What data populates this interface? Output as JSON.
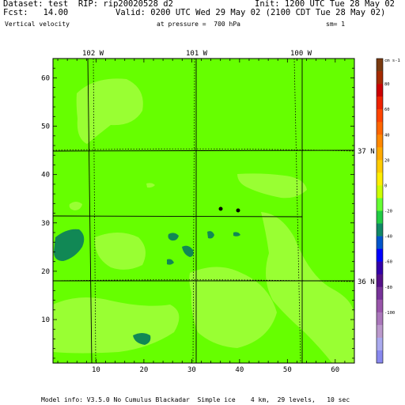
{
  "header": {
    "dataset": "Dataset: test  RIP: rip20020528 d2",
    "init": "Init: 1200 UTC Tue 28 May 02",
    "fcst": "Fcst:   14.00",
    "valid": "Valid: 0200 UTC Wed 29 May 02 (2100 CDT Tue 28 May 02)",
    "field": "Vertical velocity",
    "pressure": "at pressure =  700 hPa",
    "sm": "sm= 1"
  },
  "footer": {
    "model_info": "Model info: V3.5.0 No Cumulus Blackadar  Simple ice    4 km,  29 levels,   10 sec"
  },
  "map": {
    "lon_labels": [
      "102 W",
      "101 W",
      "100 W"
    ],
    "lat_labels": [
      "37 N",
      "36 N"
    ],
    "x_ticks": [
      "10",
      "20",
      "30",
      "40",
      "50",
      "60"
    ],
    "y_ticks": [
      "10",
      "20",
      "30",
      "40",
      "50",
      "60"
    ],
    "x_range": [
      1,
      64
    ],
    "y_range": [
      1,
      64
    ],
    "colors": {
      "background": "#66ff00",
      "light": "#99ff33",
      "dark": "#118855",
      "border": "#000000"
    }
  },
  "colorbar": {
    "unit": "cm s-1",
    "labels": [
      "80",
      "60",
      "40",
      "20",
      "0",
      "-20",
      "-40",
      "-60",
      "-80",
      "-100"
    ],
    "colors": [
      "#7a3a10",
      "#a52a00",
      "#cc0000",
      "#ee2200",
      "#ff4400",
      "#ff6600",
      "#ff8800",
      "#ffaa00",
      "#ffcc00",
      "#ffee00",
      "#ccff00",
      "#66ff33",
      "#22cc44",
      "#118866",
      "#0055cc",
      "#0000ff",
      "#3300aa",
      "#551188",
      "#773399",
      "#9955aa",
      "#aa77bb",
      "#bb99cc",
      "#aaaaee",
      "#8888ee"
    ]
  }
}
